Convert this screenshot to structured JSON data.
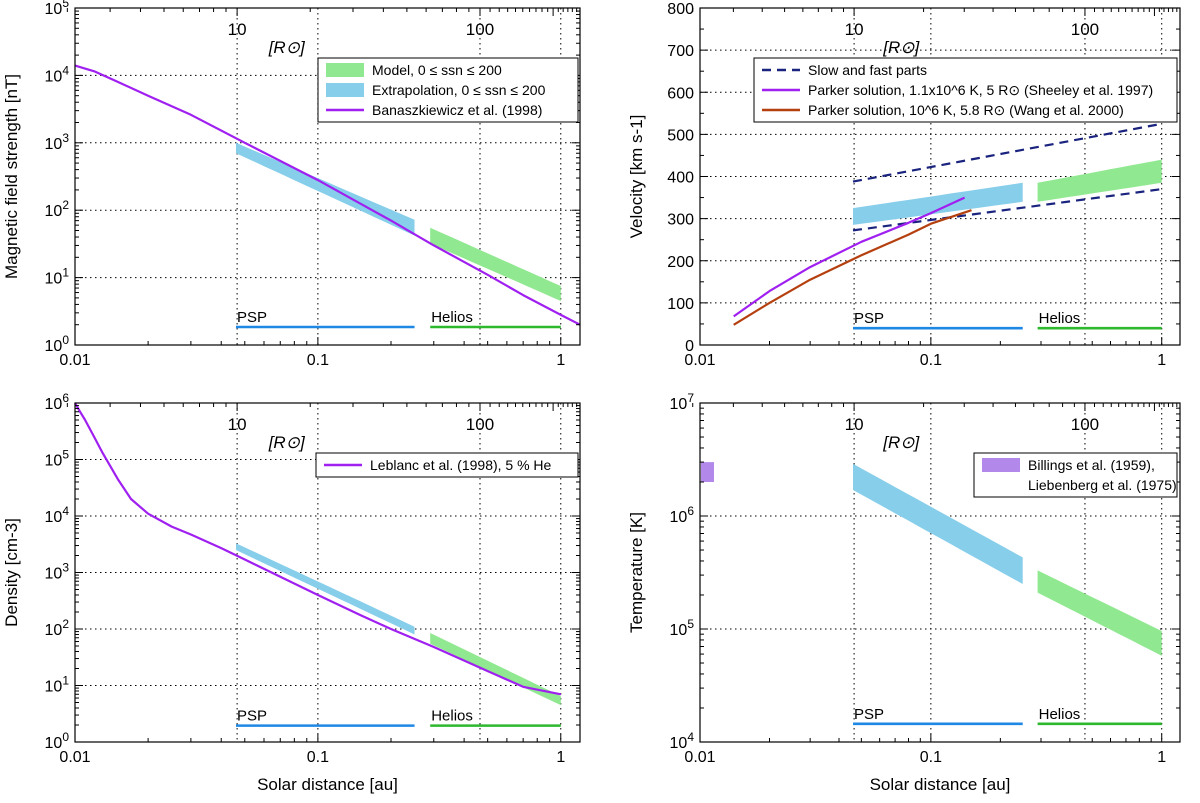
{
  "chart_data": [
    {
      "id": "b",
      "type": "line",
      "ylabel": "Magnetic field strength [nT]",
      "xlabel": "",
      "xscale": "log",
      "yscale": "log",
      "xlim": [
        0.01,
        1.2
      ],
      "ylim": [
        1,
        100000
      ],
      "yticks": [
        1,
        10,
        100,
        1000,
        10000,
        100000
      ],
      "yticklabels": [
        "10^0",
        "10^1",
        "10^2",
        "10^3",
        "10^4",
        "10^5"
      ],
      "xticks": [
        0.01,
        0.1,
        1
      ],
      "xticklabels": [
        "0.01",
        "0.1",
        "1"
      ],
      "top_axis": {
        "unit_label": "[R⊙]",
        "ticks": [
          10,
          100
        ],
        "ticklabels": [
          "10",
          "100"
        ]
      },
      "legend": {
        "position": "top-right",
        "entries": [
          {
            "label": "Model, 0 ≤ ssn ≤ 200",
            "kind": "band",
            "color": "#90e890"
          },
          {
            "label": "Extrapolation, 0 ≤ ssn ≤ 200",
            "kind": "band",
            "color": "#87ceeb"
          },
          {
            "label": "Banaszkiewicz et al. (1998)",
            "kind": "line",
            "color": "#a020f0"
          }
        ]
      },
      "bands": [
        {
          "name": "Extrapolation",
          "color": "#87ceeb",
          "x": [
            0.046,
            0.25
          ],
          "lower": [
            700,
            42
          ],
          "upper": [
            1000,
            72
          ]
        },
        {
          "name": "Model",
          "color": "#90e890",
          "x": [
            0.29,
            1.0
          ],
          "lower": [
            32,
            4.5
          ],
          "upper": [
            55,
            7.5
          ]
        }
      ],
      "series": [
        {
          "name": "Banaszkiewicz et al. (1998)",
          "color": "#a020f0",
          "width": 2.2,
          "x": [
            0.01,
            0.012,
            0.015,
            0.02,
            0.03,
            0.05,
            0.1,
            0.2,
            0.3,
            0.5,
            0.7,
            1.0,
            1.2
          ],
          "y": [
            14000,
            11500,
            8000,
            5000,
            2600,
            1000,
            280,
            70,
            30,
            11,
            5.5,
            2.8,
            2.0
          ]
        }
      ],
      "spans": [
        {
          "label": "PSP",
          "color": "#1f88e5",
          "x": [
            0.046,
            0.25
          ],
          "y": 1.85
        },
        {
          "label": "Helios",
          "color": "#2eb82e",
          "x": [
            0.29,
            1.0
          ],
          "y": 1.85
        }
      ]
    },
    {
      "id": "v",
      "type": "line",
      "ylabel": "Velocity [km s-1]",
      "xlabel": "",
      "xscale": "log",
      "yscale": "linear",
      "xlim": [
        0.01,
        1.2
      ],
      "ylim": [
        0,
        800
      ],
      "yticks": [
        0,
        100,
        200,
        300,
        400,
        500,
        600,
        700,
        800
      ],
      "yticklabels": [
        "0",
        "100",
        "200",
        "300",
        "400",
        "500",
        "600",
        "700",
        "800"
      ],
      "xticks": [
        0.01,
        0.1,
        1
      ],
      "xticklabels": [
        "0.01",
        "0.1",
        "1"
      ],
      "top_axis": {
        "unit_label": "[R⊙]",
        "ticks": [
          10,
          100
        ],
        "ticklabels": [
          "10",
          "100"
        ]
      },
      "legend": {
        "position": "top-right",
        "entries": [
          {
            "label": "Slow and fast parts",
            "kind": "dash",
            "color": "#1a237e"
          },
          {
            "label": "Parker solution, 1.1x10^6 K, 5 R⊙ (Sheeley et al. 1997)",
            "kind": "line",
            "color": "#a020f0"
          },
          {
            "label": "Parker solution, 10^6 K, 5.8 R⊙ (Wang et al. 2000)",
            "kind": "line",
            "color": "#b5400f"
          }
        ]
      },
      "bands": [
        {
          "name": "Extrapolation",
          "color": "#87ceeb",
          "x": [
            0.046,
            0.25
          ],
          "lower": [
            285,
            340
          ],
          "upper": [
            325,
            385
          ]
        },
        {
          "name": "Model",
          "color": "#90e890",
          "x": [
            0.29,
            1.0
          ],
          "lower": [
            340,
            385
          ],
          "upper": [
            385,
            440
          ]
        }
      ],
      "series": [
        {
          "name": "Slow part",
          "color": "#1a237e",
          "width": 2.2,
          "dash": "9 6",
          "x": [
            0.046,
            1.0
          ],
          "y": [
            272,
            370
          ]
        },
        {
          "name": "Fast part",
          "color": "#1a237e",
          "width": 2.2,
          "dash": "9 6",
          "x": [
            0.046,
            1.0
          ],
          "y": [
            388,
            525
          ]
        },
        {
          "name": "Parker solution, 1.1x10^6 K, 5 R⊙ (Sheeley et al. 1997)",
          "color": "#a020f0",
          "width": 2.2,
          "x": [
            0.014,
            0.02,
            0.03,
            0.05,
            0.08,
            0.1,
            0.14
          ],
          "y": [
            68,
            128,
            185,
            245,
            290,
            313,
            350
          ]
        },
        {
          "name": "Parker solution, 10^6 K, 5.8 R⊙ (Wang et al. 2000)",
          "color": "#b5400f",
          "width": 2.2,
          "x": [
            0.014,
            0.02,
            0.03,
            0.05,
            0.08,
            0.1,
            0.15
          ],
          "y": [
            48,
            100,
            155,
            213,
            262,
            288,
            320
          ]
        }
      ],
      "spans": [
        {
          "label": "PSP",
          "color": "#1f88e5",
          "x": [
            0.046,
            0.25
          ],
          "y": 40
        },
        {
          "label": "Helios",
          "color": "#2eb82e",
          "x": [
            0.29,
            1.0
          ],
          "y": 40
        }
      ]
    },
    {
      "id": "n",
      "type": "line",
      "ylabel": "Density [cm-3]",
      "xlabel": "Solar distance [au]",
      "xscale": "log",
      "yscale": "log",
      "xlim": [
        0.01,
        1.2
      ],
      "ylim": [
        1,
        1000000
      ],
      "yticks": [
        1,
        10,
        100,
        1000,
        10000,
        100000,
        1000000
      ],
      "yticklabels": [
        "10^0",
        "10^1",
        "10^2",
        "10^3",
        "10^4",
        "10^5",
        "10^6"
      ],
      "xticks": [
        0.01,
        0.1,
        1
      ],
      "xticklabels": [
        "0.01",
        "0.1",
        "1"
      ],
      "top_axis": {
        "unit_label": "[R⊙]",
        "ticks": [
          10,
          100
        ],
        "ticklabels": [
          "10",
          "100"
        ]
      },
      "legend": {
        "position": "top-right",
        "entries": [
          {
            "label": "Leblanc et al. (1998), 5 % He",
            "kind": "line",
            "color": "#a020f0"
          }
        ]
      },
      "bands": [
        {
          "name": "Extrapolation",
          "color": "#87ceeb",
          "x": [
            0.046,
            0.25
          ],
          "lower": [
            2500,
            80
          ],
          "upper": [
            3300,
            110
          ]
        },
        {
          "name": "Model",
          "color": "#90e890",
          "x": [
            0.29,
            1.0
          ],
          "lower": [
            55,
            4.5
          ],
          "upper": [
            85,
            6.5
          ]
        }
      ],
      "series": [
        {
          "name": "Leblanc et al. (1998), 5 % He",
          "color": "#a020f0",
          "width": 2.2,
          "x": [
            0.01,
            0.0105,
            0.011,
            0.012,
            0.013,
            0.015,
            0.017,
            0.02,
            0.025,
            0.03,
            0.04,
            0.05,
            0.07,
            0.1,
            0.15,
            0.2,
            0.3,
            0.5,
            0.7,
            1.0
          ],
          "y": [
            1000000,
            700000,
            500000,
            250000,
            130000,
            45000,
            20000,
            11000,
            6500,
            4700,
            2700,
            1700,
            840,
            400,
            175,
            100,
            48,
            18,
            9.5,
            7
          ]
        }
      ],
      "spans": [
        {
          "label": "PSP",
          "color": "#1f88e5",
          "x": [
            0.046,
            0.25
          ],
          "y": 1.95
        },
        {
          "label": "Helios",
          "color": "#2eb82e",
          "x": [
            0.29,
            1.0
          ],
          "y": 1.95
        }
      ]
    },
    {
      "id": "t",
      "type": "line",
      "ylabel": "Temperature [K]",
      "xlabel": "Solar distance [au]",
      "xscale": "log",
      "yscale": "log",
      "xlim": [
        0.01,
        1.2
      ],
      "ylim": [
        10000,
        10000000
      ],
      "yticks": [
        10000,
        100000,
        1000000,
        10000000
      ],
      "yticklabels": [
        "10^4",
        "10^5",
        "10^6",
        "10^7"
      ],
      "xticks": [
        0.01,
        0.1,
        1
      ],
      "xticklabels": [
        "0.01",
        "0.1",
        "1"
      ],
      "top_axis": {
        "unit_label": "[R⊙]",
        "ticks": [
          10,
          100
        ],
        "ticklabels": [
          "10",
          "100"
        ]
      },
      "legend": {
        "position": "top-right",
        "entries": [
          {
            "label": "Billings et al. (1959),",
            "kind": "band",
            "color": "#b388eb"
          },
          {
            "label": "Liebenberg et al. (1975)",
            "kind": "text",
            "color": "#b388eb"
          }
        ]
      },
      "bands": [
        {
          "name": "Billings / Liebenberg",
          "color": "#b388eb",
          "x": [
            0.0101,
            0.0115
          ],
          "lower": [
            2000000,
            2000000
          ],
          "upper": [
            3000000,
            3000000
          ]
        },
        {
          "name": "Extrapolation",
          "color": "#87ceeb",
          "x": [
            0.046,
            0.25
          ],
          "lower": [
            1700000,
            250000
          ],
          "upper": [
            2900000,
            430000
          ]
        },
        {
          "name": "Model",
          "color": "#90e890",
          "x": [
            0.29,
            1.0
          ],
          "lower": [
            210000,
            58000
          ],
          "upper": [
            330000,
            96000
          ]
        }
      ],
      "series": [],
      "spans": [
        {
          "label": "PSP",
          "color": "#1f88e5",
          "x": [
            0.046,
            0.25
          ],
          "y": 14500
        },
        {
          "label": "Helios",
          "color": "#2eb82e",
          "x": [
            0.29,
            1.0
          ],
          "y": 14500
        }
      ]
    }
  ]
}
